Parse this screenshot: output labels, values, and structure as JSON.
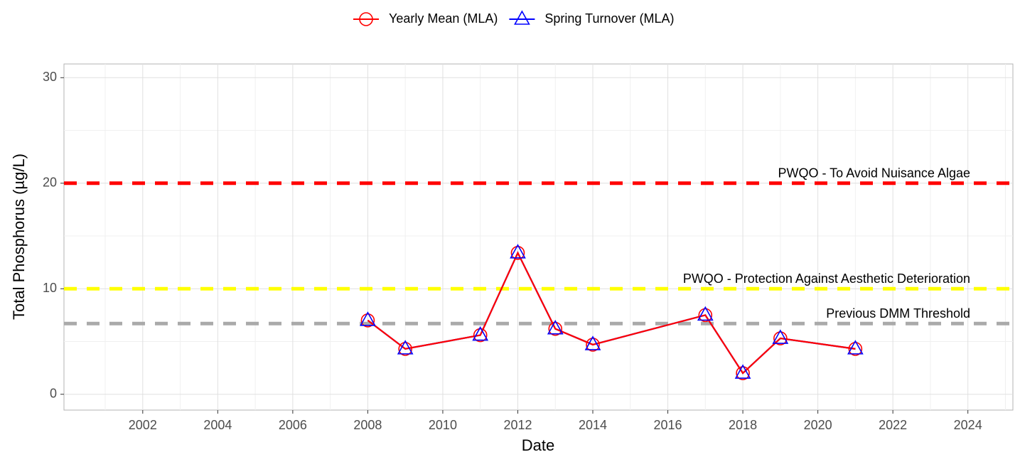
{
  "chart_data": {
    "type": "line",
    "x_label": "Date",
    "y_label": "Total Phosphorus (µg/L)",
    "x": [
      2008,
      2009,
      2011,
      2012,
      2013,
      2014,
      2017,
      2018,
      2019,
      2021
    ],
    "series": [
      {
        "name": "Yearly Mean (MLA)",
        "color": "#ff0000",
        "marker": "circle",
        "values": [
          7.0,
          4.3,
          5.6,
          13.4,
          6.2,
          4.7,
          7.5,
          2.0,
          5.3,
          4.3
        ]
      },
      {
        "name": "Spring Turnover (MLA)",
        "color": "#0000ff",
        "marker": "triangle",
        "values": [
          7.0,
          4.3,
          5.6,
          13.4,
          6.2,
          4.7,
          7.5,
          2.0,
          5.3,
          4.3
        ]
      }
    ],
    "reference_lines": [
      {
        "value": 20,
        "label": "PWQO - To Avoid Nuisance Algae",
        "color": "#ff0000"
      },
      {
        "value": 10,
        "label": "PWQO - Protection Against Aesthetic Deterioration",
        "color": "#ffff00"
      },
      {
        "value": 6.7,
        "label": "Previous DMM Threshold",
        "color": "#aaaaaa"
      }
    ],
    "xlim": [
      1999.9,
      2025.2
    ],
    "xticks": [
      2002,
      2004,
      2006,
      2008,
      2010,
      2012,
      2014,
      2016,
      2018,
      2020,
      2022,
      2024
    ],
    "ylim": [
      -1.5,
      31.3
    ],
    "yticks": [
      0,
      10,
      20,
      30
    ],
    "grid": true,
    "legend": "top"
  }
}
